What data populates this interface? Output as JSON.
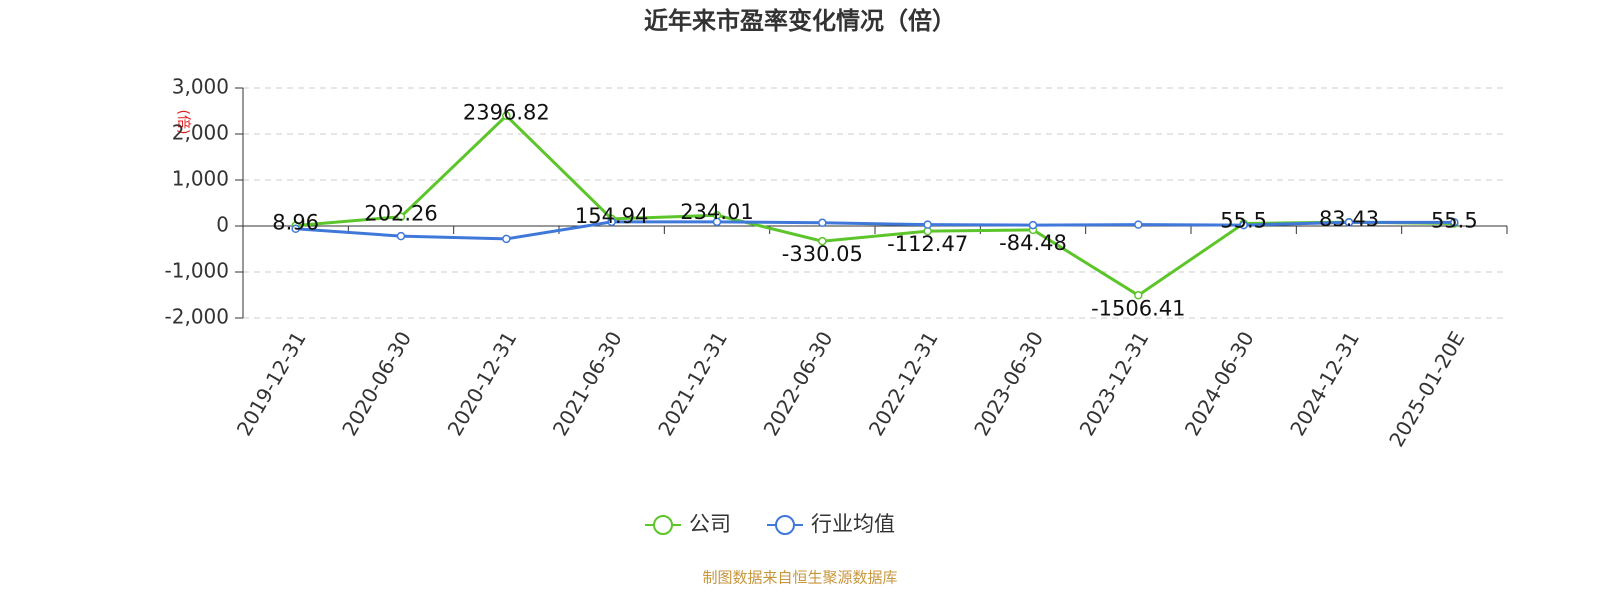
{
  "chart_data": {
    "type": "line",
    "title": "近年来市盈率变化情况（倍）",
    "y_label": "(倍)",
    "categories": [
      "2019-12-31",
      "2020-06-30",
      "2020-12-31",
      "2021-06-30",
      "2021-12-31",
      "2022-06-30",
      "2022-12-31",
      "2023-06-30",
      "2023-12-31",
      "2024-06-30",
      "2024-12-31",
      "2025-01-20E"
    ],
    "series": [
      {
        "name": "公司",
        "color": "#5cc52a",
        "values": [
          8.96,
          202.26,
          2396.82,
          154.94,
          234.01,
          -330.05,
          -112.47,
          -84.48,
          -1506.41,
          55.5,
          83.43,
          55.5
        ]
      },
      {
        "name": "行业均值",
        "color": "#3f78d9",
        "values": [
          -60,
          -220,
          -280,
          90,
          90,
          70,
          30,
          20,
          30,
          20,
          80,
          80
        ]
      }
    ],
    "ylim": [
      -2000,
      3000
    ],
    "yticks": [
      {
        "value": -2000,
        "label": "-2,000"
      },
      {
        "value": -1000,
        "label": "-1,000"
      },
      0,
      {
        "value": 1000,
        "label": "1,000"
      },
      {
        "value": 2000,
        "label": "2,000"
      },
      {
        "value": 3000,
        "label": "3,000"
      }
    ],
    "grid": true,
    "legend": "bottom",
    "source": "制图数据来自恒生聚源数据库"
  }
}
